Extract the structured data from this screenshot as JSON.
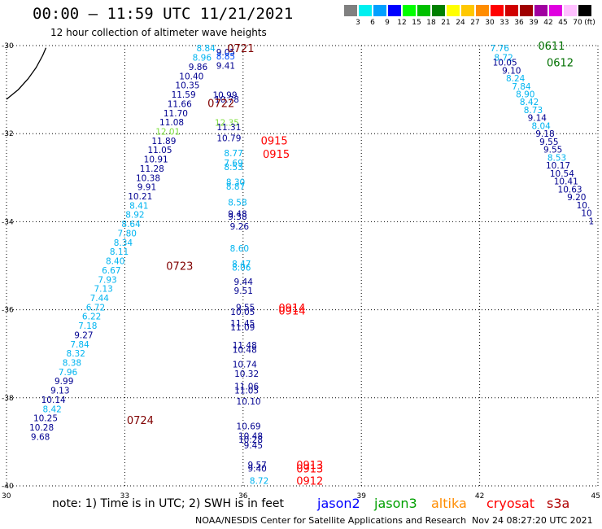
{
  "header": {
    "title": "00:00 – 11:59 UTC 11/21/2021",
    "subtitle": "12 hour collection of altimeter wave heights"
  },
  "legend": {
    "unit": "(ft)",
    "bins": [
      {
        "label": "3",
        "color": "#808080"
      },
      {
        "label": "6",
        "color": "#00f0f0"
      },
      {
        "label": "9",
        "color": "#00a0ff"
      },
      {
        "label": "12",
        "color": "#0000ff"
      },
      {
        "label": "15",
        "color": "#00ff00"
      },
      {
        "label": "18",
        "color": "#00c000"
      },
      {
        "label": "21",
        "color": "#008000"
      },
      {
        "label": "24",
        "color": "#ffff00"
      },
      {
        "label": "27",
        "color": "#ffc800"
      },
      {
        "label": "30",
        "color": "#ff8c00"
      },
      {
        "label": "33",
        "color": "#ff0000"
      },
      {
        "label": "36",
        "color": "#d00000"
      },
      {
        "label": "39",
        "color": "#a00000"
      },
      {
        "label": "42",
        "color": "#a000a0"
      },
      {
        "label": "45",
        "color": "#e000e0"
      },
      {
        "label": "70",
        "color": "#ffc0ff"
      },
      {
        "label": "",
        "color": "#000000"
      }
    ]
  },
  "footer": {
    "note": "note: 1) Time is in UTC; 2) SWH is in feet",
    "credit": "NOAA/NESDIS Center for Satellite Applications and Research",
    "timestamp": "Nov 24 08:27:20 UTC 2021",
    "satellites": [
      {
        "name": "jason2",
        "color": "#0000ff"
      },
      {
        "name": "jason3",
        "color": "#00a000"
      },
      {
        "name": "altika",
        "color": "#ff8c00"
      },
      {
        "name": "cryosat",
        "color": "#ff0000"
      },
      {
        "name": "s3a",
        "color": "#b00000"
      }
    ]
  },
  "chart_data": {
    "type": "scatter",
    "xlim": [
      30,
      45
    ],
    "ylim": [
      -40,
      -30
    ],
    "xticks": [
      "30",
      "33",
      "36",
      "39",
      "42",
      "45"
    ],
    "yticks": [
      "-30",
      "-32",
      "-34",
      "-36",
      "-38",
      "-40"
    ],
    "grid": true,
    "coastline": [
      [
        30.0,
        -31.22
      ],
      [
        30.3,
        -31.0
      ],
      [
        30.55,
        -30.75
      ],
      [
        30.75,
        -30.5
      ],
      [
        30.92,
        -30.22
      ],
      [
        31.0,
        -30.05
      ]
    ],
    "colors": {
      "c6": "#00b4f0",
      "c9": "#0050ff",
      "c12": "#000090",
      "c15": "#80e040",
      "time_a": "#800000",
      "time_b": "#ff0000",
      "time_c": "#007000"
    },
    "time_labels": [
      {
        "text": "0721",
        "x": 35.6,
        "y": -30.06,
        "c": "time_a"
      },
      {
        "text": "0722",
        "x": 35.1,
        "y": -31.3,
        "c": "time_a"
      },
      {
        "text": "0723",
        "x": 34.05,
        "y": -35.0,
        "c": "time_a"
      },
      {
        "text": "0724",
        "x": 33.05,
        "y": -38.5,
        "c": "time_a"
      },
      {
        "text": "0915",
        "x": 36.45,
        "y": -32.15,
        "c": "time_b"
      },
      {
        "text": "0915",
        "x": 36.5,
        "y": -32.46,
        "c": "time_b"
      },
      {
        "text": "0914",
        "x": 36.9,
        "y": -35.95,
        "c": "time_b"
      },
      {
        "text": "0914",
        "x": 36.9,
        "y": -36.02,
        "c": "time_b"
      },
      {
        "text": "0913",
        "x": 37.35,
        "y": -39.52,
        "c": "time_b"
      },
      {
        "text": "0913",
        "x": 37.35,
        "y": -39.6,
        "c": "time_b"
      },
      {
        "text": "0912",
        "x": 37.35,
        "y": -39.88,
        "c": "time_b"
      },
      {
        "text": "0611",
        "x": 43.48,
        "y": -30.0,
        "c": "time_c"
      },
      {
        "text": "0612",
        "x": 43.7,
        "y": -30.38,
        "c": "time_c"
      }
    ],
    "points": [
      {
        "v": "8.84",
        "x": 35.3,
        "y": -30.06,
        "c": "c6"
      },
      {
        "v": "8.96",
        "x": 35.2,
        "y": -30.27,
        "c": "c6"
      },
      {
        "v": "9.86",
        "x": 35.1,
        "y": -30.48,
        "c": "c12"
      },
      {
        "v": "10.40",
        "x": 35.0,
        "y": -30.69,
        "c": "c12"
      },
      {
        "v": "10.35",
        "x": 34.9,
        "y": -30.9,
        "c": "c12"
      },
      {
        "v": "11.59",
        "x": 34.8,
        "y": -31.11,
        "c": "c12"
      },
      {
        "v": "11.66",
        "x": 34.7,
        "y": -31.32,
        "c": "c12"
      },
      {
        "v": "11.70",
        "x": 34.6,
        "y": -31.53,
        "c": "c12"
      },
      {
        "v": "11.08",
        "x": 34.5,
        "y": -31.74,
        "c": "c12"
      },
      {
        "v": "12.01",
        "x": 34.4,
        "y": -31.95,
        "c": "c15"
      },
      {
        "v": "11.89",
        "x": 34.3,
        "y": -32.16,
        "c": "c12"
      },
      {
        "v": "11.05",
        "x": 34.2,
        "y": -32.37,
        "c": "c12"
      },
      {
        "v": "10.91",
        "x": 34.1,
        "y": -32.58,
        "c": "c12"
      },
      {
        "v": "11.28",
        "x": 34.0,
        "y": -32.79,
        "c": "c12"
      },
      {
        "v": "10.38",
        "x": 33.9,
        "y": -33.0,
        "c": "c12"
      },
      {
        "v": "9.91",
        "x": 33.8,
        "y": -33.21,
        "c": "c12"
      },
      {
        "v": "10.21",
        "x": 33.7,
        "y": -33.42,
        "c": "c12"
      },
      {
        "v": "8.41",
        "x": 33.6,
        "y": -33.63,
        "c": "c6"
      },
      {
        "v": "8.92",
        "x": 33.5,
        "y": -33.84,
        "c": "c6"
      },
      {
        "v": "8.64",
        "x": 33.4,
        "y": -34.05,
        "c": "c6"
      },
      {
        "v": "7.80",
        "x": 33.3,
        "y": -34.26,
        "c": "c6"
      },
      {
        "v": "8.34",
        "x": 33.2,
        "y": -34.47,
        "c": "c6"
      },
      {
        "v": "8.11",
        "x": 33.1,
        "y": -34.68,
        "c": "c6"
      },
      {
        "v": "8.40",
        "x": 33.0,
        "y": -34.89,
        "c": "c6"
      },
      {
        "v": "6.67",
        "x": 32.9,
        "y": -35.1,
        "c": "c6"
      },
      {
        "v": "7.93",
        "x": 32.8,
        "y": -35.31,
        "c": "c6"
      },
      {
        "v": "7.13",
        "x": 32.7,
        "y": -35.52,
        "c": "c6"
      },
      {
        "v": "7.44",
        "x": 32.6,
        "y": -35.73,
        "c": "c6"
      },
      {
        "v": "6.72",
        "x": 32.5,
        "y": -35.94,
        "c": "c6"
      },
      {
        "v": "6.22",
        "x": 32.4,
        "y": -36.15,
        "c": "c6"
      },
      {
        "v": "7.18",
        "x": 32.3,
        "y": -36.36,
        "c": "c6"
      },
      {
        "v": "9.27",
        "x": 32.2,
        "y": -36.57,
        "c": "c12"
      },
      {
        "v": "7.84",
        "x": 32.1,
        "y": -36.78,
        "c": "c6"
      },
      {
        "v": "8.32",
        "x": 32.0,
        "y": -36.99,
        "c": "c6"
      },
      {
        "v": "8.38",
        "x": 31.9,
        "y": -37.2,
        "c": "c6"
      },
      {
        "v": "7.96",
        "x": 31.8,
        "y": -37.41,
        "c": "c6"
      },
      {
        "v": "9.99",
        "x": 31.7,
        "y": -37.62,
        "c": "c12"
      },
      {
        "v": "9.13",
        "x": 31.6,
        "y": -37.83,
        "c": "c12"
      },
      {
        "v": "10.14",
        "x": 31.5,
        "y": -38.04,
        "c": "c12"
      },
      {
        "v": "8.42",
        "x": 31.4,
        "y": -38.25,
        "c": "c6"
      },
      {
        "v": "10.25",
        "x": 31.3,
        "y": -38.46,
        "c": "c12"
      },
      {
        "v": "10.28",
        "x": 31.2,
        "y": -38.67,
        "c": "c12"
      },
      {
        "v": "9.68",
        "x": 31.1,
        "y": -38.88,
        "c": "c12"
      },
      {
        "v": "9.05",
        "x": 35.8,
        "y": -30.15,
        "c": "c12"
      },
      {
        "v": "8.85",
        "x": 35.8,
        "y": -30.24,
        "c": "c9"
      },
      {
        "v": "9.41",
        "x": 35.8,
        "y": -30.45,
        "c": "c12"
      },
      {
        "v": "10.99",
        "x": 35.85,
        "y": -31.12,
        "c": "c12"
      },
      {
        "v": "10.78",
        "x": 35.9,
        "y": -31.22,
        "c": "c12"
      },
      {
        "v": "12.35",
        "x": 35.9,
        "y": -31.75,
        "c": "c15"
      },
      {
        "v": "11.31",
        "x": 35.95,
        "y": -31.85,
        "c": "c12"
      },
      {
        "v": "10.79",
        "x": 35.95,
        "y": -32.1,
        "c": "c12"
      },
      {
        "v": "8.77",
        "x": 36.0,
        "y": -32.44,
        "c": "c6"
      },
      {
        "v": "7.69",
        "x": 36.0,
        "y": -32.66,
        "c": "c6"
      },
      {
        "v": "8.53",
        "x": 36.0,
        "y": -32.75,
        "c": "c6"
      },
      {
        "v": "8.30",
        "x": 36.05,
        "y": -33.1,
        "c": "c6"
      },
      {
        "v": "8.87",
        "x": 36.05,
        "y": -33.2,
        "c": "c6"
      },
      {
        "v": "8.58",
        "x": 36.1,
        "y": -33.56,
        "c": "c6"
      },
      {
        "v": "9.48",
        "x": 36.1,
        "y": -33.82,
        "c": "c12"
      },
      {
        "v": "9.38",
        "x": 36.1,
        "y": -33.88,
        "c": "c12"
      },
      {
        "v": "9.26",
        "x": 36.15,
        "y": -34.1,
        "c": "c12"
      },
      {
        "v": "8.60",
        "x": 36.15,
        "y": -34.6,
        "c": "c6"
      },
      {
        "v": "8.47",
        "x": 36.2,
        "y": -34.95,
        "c": "c6"
      },
      {
        "v": "8.06",
        "x": 36.2,
        "y": -35.04,
        "c": "c6"
      },
      {
        "v": "9.44",
        "x": 36.25,
        "y": -35.36,
        "c": "c12"
      },
      {
        "v": "9.51",
        "x": 36.25,
        "y": -35.56,
        "c": "c12"
      },
      {
        "v": "9.55",
        "x": 36.3,
        "y": -35.94,
        "c": "c12"
      },
      {
        "v": "10.05",
        "x": 36.3,
        "y": -36.04,
        "c": "c12"
      },
      {
        "v": "11.45",
        "x": 36.3,
        "y": -36.3,
        "c": "c12"
      },
      {
        "v": "11.09",
        "x": 36.3,
        "y": -36.4,
        "c": "c12"
      },
      {
        "v": "11.48",
        "x": 36.35,
        "y": -36.8,
        "c": "c12"
      },
      {
        "v": "10.48",
        "x": 36.35,
        "y": -36.9,
        "c": "c12"
      },
      {
        "v": "10.74",
        "x": 36.35,
        "y": -37.24,
        "c": "c12"
      },
      {
        "v": "10.32",
        "x": 36.4,
        "y": -37.45,
        "c": "c12"
      },
      {
        "v": "11.06",
        "x": 36.4,
        "y": -37.74,
        "c": "c12"
      },
      {
        "v": "11.05",
        "x": 36.4,
        "y": -37.83,
        "c": "c12"
      },
      {
        "v": "10.10",
        "x": 36.45,
        "y": -38.08,
        "c": "c12"
      },
      {
        "v": "10.69",
        "x": 36.45,
        "y": -38.64,
        "c": "c12"
      },
      {
        "v": "10.48",
        "x": 36.5,
        "y": -38.86,
        "c": "c12"
      },
      {
        "v": "10.28",
        "x": 36.5,
        "y": -38.95,
        "c": "c12"
      },
      {
        "v": "9.45",
        "x": 36.5,
        "y": -39.08,
        "c": "c12"
      },
      {
        "v": "9.57",
        "x": 36.6,
        "y": -39.52,
        "c": "c12"
      },
      {
        "v": "9.40",
        "x": 36.6,
        "y": -39.6,
        "c": "c12"
      },
      {
        "v": "8.72",
        "x": 36.65,
        "y": -39.88,
        "c": "c6"
      },
      {
        "v": "7.76",
        "x": 42.75,
        "y": -30.06,
        "c": "c6"
      },
      {
        "v": "8.72",
        "x": 42.85,
        "y": -30.27,
        "c": "c6"
      },
      {
        "v": "10.05",
        "x": 42.95,
        "y": -30.38,
        "c": "c12"
      },
      {
        "v": "9.10",
        "x": 43.05,
        "y": -30.56,
        "c": "c12"
      },
      {
        "v": "8.24",
        "x": 43.15,
        "y": -30.74,
        "c": "c6"
      },
      {
        "v": "7.84",
        "x": 43.3,
        "y": -30.92,
        "c": "c6"
      },
      {
        "v": "8.90",
        "x": 43.4,
        "y": -31.1,
        "c": "c6"
      },
      {
        "v": "8.42",
        "x": 43.5,
        "y": -31.28,
        "c": "c6"
      },
      {
        "v": "8.73",
        "x": 43.6,
        "y": -31.46,
        "c": "c6"
      },
      {
        "v": "9.14",
        "x": 43.7,
        "y": -31.64,
        "c": "c12"
      },
      {
        "v": "8.04",
        "x": 43.8,
        "y": -31.82,
        "c": "c6"
      },
      {
        "v": "9.18",
        "x": 43.9,
        "y": -32.0,
        "c": "c12"
      },
      {
        "v": "9.55",
        "x": 44.0,
        "y": -32.18,
        "c": "c12"
      },
      {
        "v": "9.55",
        "x": 44.1,
        "y": -32.36,
        "c": "c12"
      },
      {
        "v": "8.53",
        "x": 44.2,
        "y": -32.54,
        "c": "c6"
      },
      {
        "v": "10.17",
        "x": 44.3,
        "y": -32.72,
        "c": "c12"
      },
      {
        "v": "10.54",
        "x": 44.4,
        "y": -32.9,
        "c": "c12"
      },
      {
        "v": "10.41",
        "x": 44.5,
        "y": -33.08,
        "c": "c12"
      },
      {
        "v": "10.63",
        "x": 44.6,
        "y": -33.26,
        "c": "c12"
      },
      {
        "v": "9.20",
        "x": 44.7,
        "y": -33.44,
        "c": "c12"
      },
      {
        "v": "10.",
        "x": 44.8,
        "y": -33.62,
        "c": "c12"
      },
      {
        "v": "10",
        "x": 44.85,
        "y": -33.8,
        "c": "c12"
      },
      {
        "v": "1",
        "x": 44.9,
        "y": -33.98,
        "c": "c12"
      }
    ]
  }
}
